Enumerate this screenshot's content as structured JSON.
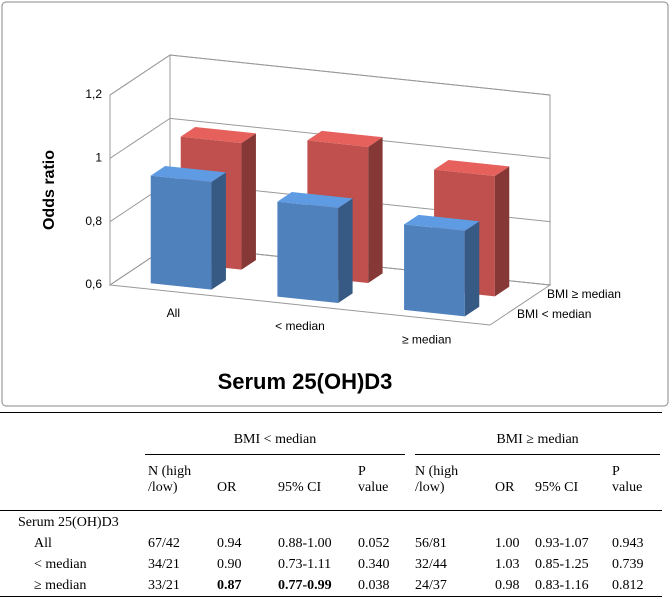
{
  "chart_data": {
    "type": "bar3d",
    "x_label": "Serum 25(OH)D3",
    "y_label": "Odds ratio",
    "categories": [
      "All",
      "< median",
      "≥ median"
    ],
    "series": [
      {
        "name": "BMI < median",
        "color": "#4f81bd",
        "values": [
          0.94,
          0.9,
          0.87
        ]
      },
      {
        "name": "BMI ≥ median",
        "color": "#c0504d",
        "values": [
          1.0,
          1.03,
          0.98
        ]
      }
    ],
    "ylim": [
      0.6,
      1.2
    ],
    "yticks": [
      {
        "value": 0.6,
        "label": "0,6"
      },
      {
        "value": 0.8,
        "label": "0,8"
      },
      1,
      {
        "value": 1.2,
        "label": "1,2"
      }
    ],
    "grid": true
  },
  "table": {
    "group_headers": [
      "BMI < median",
      "BMI ≥ median"
    ],
    "columns": [
      "N (high /low)",
      "OR",
      "95% CI",
      "P value",
      "N (high /low)",
      "OR",
      "95% CI",
      "P value"
    ],
    "section": "Serum 25(OH)D3",
    "rows": [
      [
        "All",
        "67/42",
        "0.94",
        "0.88-1.00",
        "0.052",
        "56/81",
        "1.00",
        "0.93-1.07",
        "0.943"
      ],
      [
        "< median",
        "34/21",
        "0.90",
        "0.73-1.11",
        "0.340",
        "32/44",
        "1.03",
        "0.85-1.25",
        "0.739"
      ],
      [
        "≥ median",
        "33/21",
        "0.87",
        "0.77-0.99",
        "0.038",
        "24/37",
        "0.98",
        "0.83-1.16",
        "0.812"
      ]
    ]
  }
}
